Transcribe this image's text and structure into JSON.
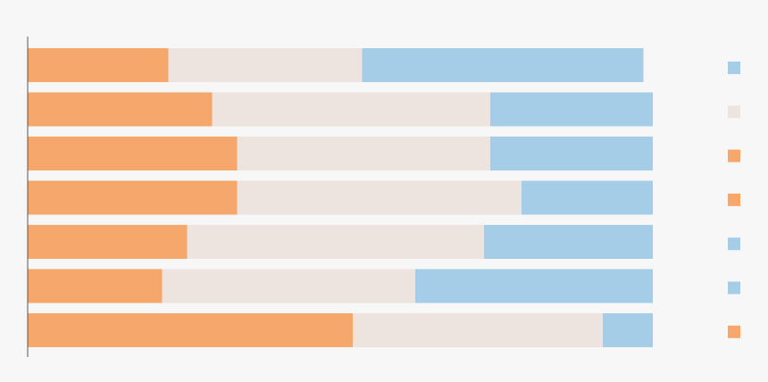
{
  "chart_data": {
    "type": "bar",
    "orientation": "horizontal",
    "stacked": true,
    "series": [
      {
        "color": "#f5a76c",
        "values": [
          22.5,
          29.5,
          33.5,
          33.5,
          25.5,
          21.5,
          52
        ]
      },
      {
        "color": "#ede3df",
        "values": [
          31,
          44.5,
          40.5,
          45.5,
          47.5,
          40.5,
          40
        ]
      },
      {
        "color": "#a5cde7",
        "values": [
          45,
          26,
          26,
          21,
          27,
          38,
          8
        ]
      }
    ],
    "grid": false,
    "legend_position": "right",
    "legend_swatch_colors": [
      "#a5cde7",
      "#ede3df",
      "#f5a76c",
      "#f5a76c",
      "#a5cde7",
      "#a5cde7",
      "#f5a76c"
    ]
  }
}
